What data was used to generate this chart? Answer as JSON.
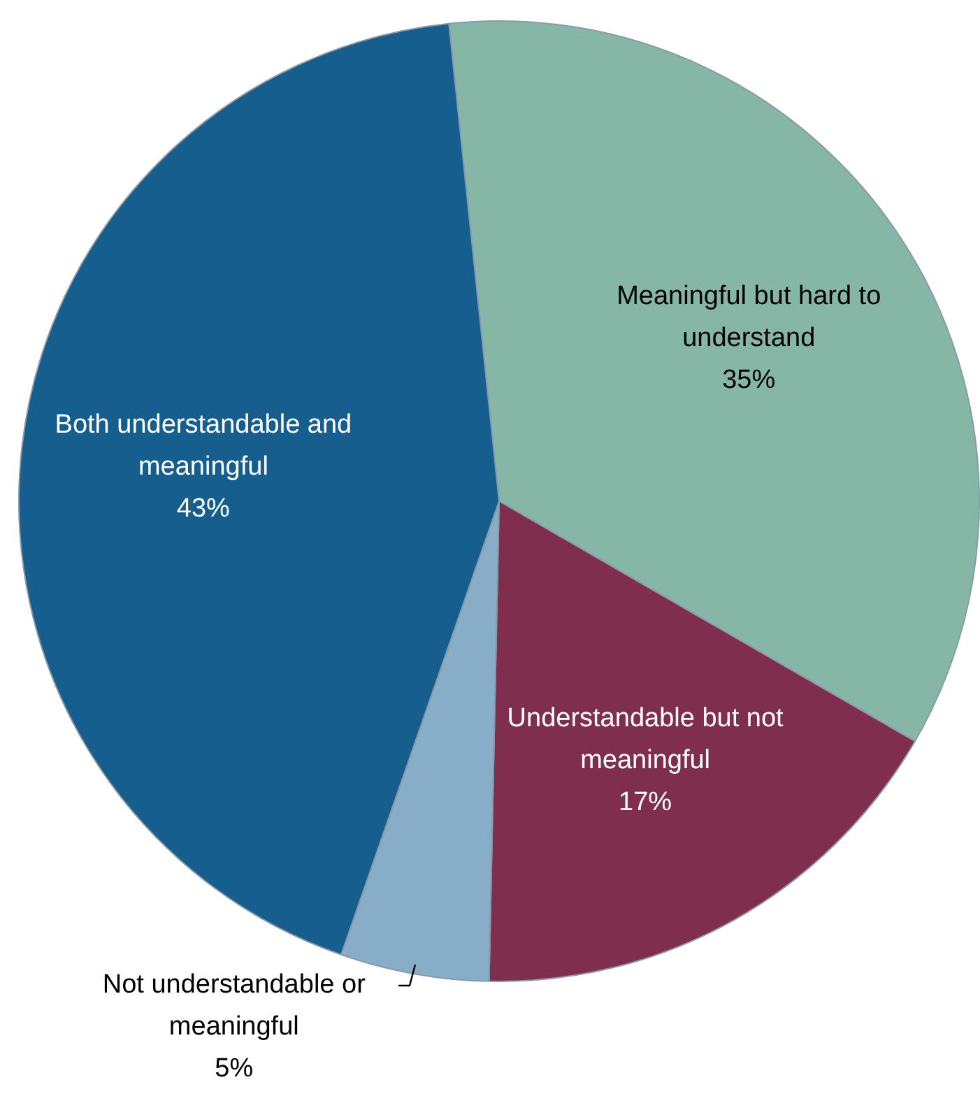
{
  "chart_data": {
    "type": "pie",
    "categories": [
      "Meaningful but hard to understand",
      "Understandable but not meaningful",
      "Not understandable or meaningful",
      "Both understandable and meaningful"
    ],
    "values": [
      35,
      17,
      5,
      43
    ],
    "value_labels": [
      "35%",
      "17%",
      "5%",
      "43%"
    ],
    "colors": [
      "#86b6a5",
      "#7f2f4d",
      "#87adc8",
      "#165e8e"
    ],
    "legend": false
  }
}
